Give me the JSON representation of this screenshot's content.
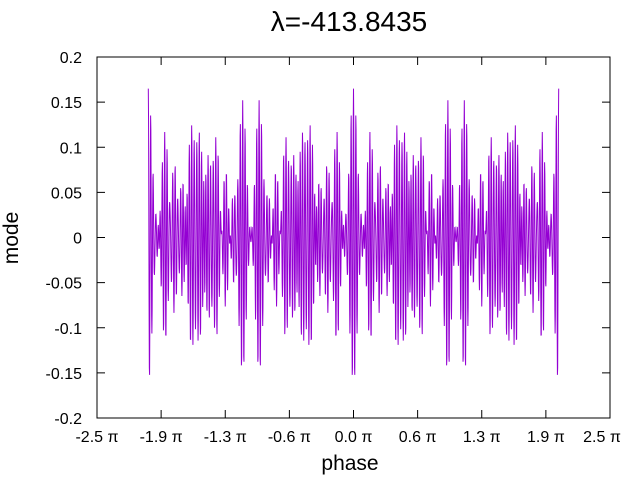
{
  "chart_data": {
    "type": "line",
    "title": "λ=-413.8435",
    "xlabel": "phase",
    "ylabel": "mode",
    "xlim": [
      -2.5,
      2.5
    ],
    "ylim": [
      -0.2,
      0.2
    ],
    "x_unit": "π",
    "x_ticks": [
      {
        "value": -2.5,
        "label": "-2.5 π"
      },
      {
        "value": -1.875,
        "label": "-1.9 π"
      },
      {
        "value": -1.25,
        "label": "-1.3 π"
      },
      {
        "value": -0.625,
        "label": "-0.6 π"
      },
      {
        "value": 0.0,
        "label": "0.0 π"
      },
      {
        "value": 0.625,
        "label": "0.6 π"
      },
      {
        "value": 1.25,
        "label": "1.3 π"
      },
      {
        "value": 1.875,
        "label": "1.9 π"
      },
      {
        "value": 2.5,
        "label": "2.5 π"
      }
    ],
    "y_ticks": [
      {
        "value": 0.2,
        "label": "0.2"
      },
      {
        "value": 0.15,
        "label": "0.15"
      },
      {
        "value": 0.1,
        "label": "0.1"
      },
      {
        "value": 0.05,
        "label": "0.05"
      },
      {
        "value": 0.0,
        "label": "0"
      },
      {
        "value": -0.05,
        "label": "-0.05"
      },
      {
        "value": -0.1,
        "label": "-0.1"
      },
      {
        "value": -0.15,
        "label": "-0.15"
      },
      {
        "value": -0.2,
        "label": "-0.2"
      }
    ],
    "grid": false,
    "series_color": "#9400d3",
    "series": [
      {
        "x_range": [
          -2.0,
          2.0
        ],
        "components": [
          {
            "amplitude": 0.045,
            "cycles_per_pi": 42.5
          },
          {
            "amplitude": 0.04,
            "cycles_per_pi": 44.5
          },
          {
            "amplitude": 0.05,
            "cycles_per_pi": 38.0
          },
          {
            "amplitude": 0.03,
            "cycles_per_pi": 50.0
          }
        ],
        "points": 1600
      }
    ]
  }
}
